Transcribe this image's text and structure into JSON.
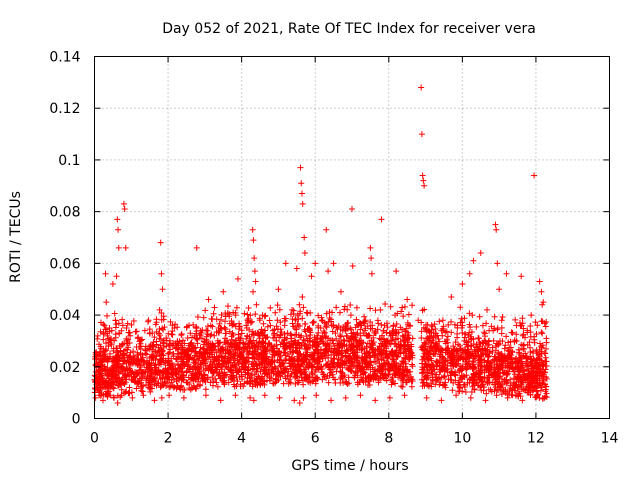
{
  "chart_data": {
    "type": "scatter",
    "title": "Day 052 of 2021, Rate Of TEC Index for receiver vera",
    "xlabel": "GPS time / hours",
    "ylabel": "ROTI / TECUs",
    "xlim": [
      0,
      14
    ],
    "ylim": [
      0,
      0.14
    ],
    "x_ticks": [
      0,
      2,
      4,
      6,
      8,
      10,
      12,
      14
    ],
    "x_tick_labels": [
      "0",
      "2",
      "4",
      "6",
      "8",
      "10",
      "12",
      "14"
    ],
    "y_ticks": [
      0,
      0.02,
      0.04,
      0.06,
      0.08,
      0.1,
      0.12,
      0.14
    ],
    "y_tick_labels": [
      "0",
      "0.02",
      "0.04",
      "0.06",
      "0.08",
      "0.1",
      "0.12",
      "0.14"
    ],
    "grid": true,
    "marker": "+",
    "color": "#ff0000",
    "series": [
      {
        "name": "ROTI",
        "x": [
          0.0,
          0.05,
          0.1,
          0.15,
          0.2,
          0.25,
          0.3,
          0.35,
          0.4,
          0.45,
          0.5,
          0.55,
          0.6,
          0.65,
          0.7,
          0.75,
          0.8,
          0.85,
          0.9,
          0.95,
          1.0,
          1.1,
          1.2,
          1.3,
          1.4,
          1.5,
          1.6,
          1.7,
          1.75,
          1.8,
          1.85,
          1.9,
          2.0,
          2.1,
          2.2,
          2.3,
          2.4,
          2.5,
          2.6,
          2.7,
          2.75,
          2.8,
          2.9,
          3.0,
          3.1,
          3.2,
          3.3,
          3.4,
          3.5,
          3.6,
          3.7,
          3.8,
          3.9,
          4.0,
          4.1,
          4.2,
          4.3,
          4.35,
          4.4,
          4.5,
          4.6,
          4.7,
          4.8,
          4.9,
          5.0,
          5.1,
          5.2,
          5.3,
          5.4,
          5.5,
          5.55,
          5.6,
          5.65,
          5.7,
          5.75,
          5.8,
          5.9,
          6.0,
          6.1,
          6.2,
          6.3,
          6.4,
          6.5,
          6.6,
          6.7,
          6.8,
          6.9,
          7.0,
          7.1,
          7.2,
          7.3,
          7.4,
          7.5,
          7.6,
          7.7,
          7.8,
          7.9,
          8.0,
          8.1,
          8.2,
          8.3,
          8.4,
          8.5,
          8.6,
          8.9,
          8.95,
          9.0,
          9.1,
          9.2,
          9.3,
          9.4,
          9.5,
          9.6,
          9.7,
          9.8,
          9.9,
          10.0,
          10.1,
          10.2,
          10.3,
          10.4,
          10.5,
          10.6,
          10.7,
          10.8,
          10.9,
          10.95,
          11.0,
          11.1,
          11.2,
          11.3,
          11.4,
          11.5,
          11.6,
          11.7,
          11.8,
          11.9,
          11.95,
          12.0,
          12.1,
          12.2,
          0.02,
          0.08,
          0.12,
          0.18,
          0.22,
          0.28,
          0.33,
          0.38,
          0.42,
          0.48,
          0.52,
          0.58,
          0.62,
          0.68,
          0.72,
          0.78,
          0.82,
          0.88,
          1.05,
          1.15,
          1.25,
          1.35,
          1.45,
          1.55,
          1.65,
          1.78,
          1.95,
          2.05,
          2.15,
          2.25,
          2.35,
          2.45,
          2.55,
          2.65,
          2.85,
          2.95,
          3.05,
          3.15,
          3.25,
          3.35,
          3.45,
          3.55,
          3.65,
          3.75,
          3.85,
          3.95,
          4.05,
          4.15,
          4.25,
          4.45,
          4.55,
          4.65,
          4.75,
          4.85,
          4.95,
          5.05,
          5.15,
          5.25,
          5.35,
          5.45,
          5.62,
          5.72,
          5.85,
          5.95,
          6.05,
          6.15,
          6.25,
          6.35,
          6.45,
          6.55,
          6.65,
          6.75,
          6.85,
          6.95,
          7.05,
          7.15,
          7.25,
          7.35,
          7.45,
          7.55,
          7.65,
          7.75,
          7.85,
          7.95,
          8.05,
          8.15,
          8.25,
          8.35,
          8.45,
          8.55,
          8.65,
          8.92,
          9.05,
          9.15,
          9.25,
          9.35,
          9.45,
          9.55,
          9.65,
          9.75,
          9.85,
          9.95,
          10.05,
          10.15,
          10.25,
          10.35,
          10.45,
          10.55,
          10.65,
          10.75,
          10.85,
          10.92,
          11.05,
          11.15,
          11.25,
          11.35,
          11.45,
          11.55,
          11.65,
          11.75,
          11.85,
          11.92,
          12.05,
          12.15,
          12.25,
          0.03,
          0.13,
          0.23,
          0.43,
          0.53,
          0.63,
          0.73,
          1.03,
          1.33,
          1.63,
          1.83,
          2.03,
          2.43,
          3.03,
          3.43,
          3.83,
          4.23,
          4.33,
          4.63,
          5.03,
          5.43,
          5.58,
          5.68,
          6.03,
          6.43,
          6.83,
          7.23,
          7.63,
          8.03,
          8.43,
          9.03,
          9.43,
          9.83,
          10.23,
          10.63,
          10.93,
          11.23,
          11.63,
          12.03,
          12.23,
          0.27,
          0.37,
          0.47,
          0.57,
          0.67,
          0.77,
          0.87,
          0.97,
          1.37,
          1.47,
          1.57,
          1.77,
          2.17,
          2.57,
          2.97,
          3.37,
          3.77,
          4.17,
          4.57,
          4.97,
          5.17,
          5.37,
          5.57,
          5.77,
          6.17,
          6.57,
          6.97,
          7.37,
          7.77,
          8.17,
          8.57,
          9.07,
          9.47,
          9.87,
          10.27,
          10.67,
          11.07,
          11.47,
          11.87,
          12.17,
          0.8,
          0.82,
          0.3,
          0.32,
          0.5,
          0.6,
          0.62,
          0.64,
          0.66,
          1.8,
          1.82,
          1.85,
          2.78,
          3.1,
          3.5,
          3.9,
          4.3,
          4.32,
          4.34,
          4.36,
          4.38,
          5.0,
          5.2,
          5.5,
          5.6,
          5.62,
          5.64,
          5.66,
          5.7,
          5.72,
          5.9,
          6.0,
          6.3,
          6.5,
          6.7,
          7.0,
          7.5,
          7.52,
          7.54,
          7.8,
          8.2,
          8.5,
          8.88,
          8.9,
          8.92,
          8.94,
          8.96,
          9.7,
          10.0,
          10.2,
          10.3,
          10.5,
          10.9,
          10.92,
          10.95,
          11.0,
          11.2,
          11.6,
          11.95,
          12.1,
          12.15,
          12.2,
          5.65,
          5.68,
          0.85,
          4.31,
          6.35,
          7.02,
          7.55,
          8.8
        ],
        "y": [
          0.015,
          0.013,
          0.018,
          0.012,
          0.016,
          0.014,
          0.019,
          0.013,
          0.017,
          0.015,
          0.012,
          0.016,
          0.014,
          0.018,
          0.013,
          0.02,
          0.016,
          0.014,
          0.017,
          0.012,
          0.015,
          0.018,
          0.014,
          0.016,
          0.013,
          0.019,
          0.015,
          0.017,
          0.021,
          0.018,
          0.016,
          0.014,
          0.017,
          0.015,
          0.019,
          0.016,
          0.018,
          0.014,
          0.02,
          0.016,
          0.015,
          0.018,
          0.021,
          0.017,
          0.019,
          0.016,
          0.02,
          0.018,
          0.022,
          0.017,
          0.019,
          0.021,
          0.018,
          0.02,
          0.017,
          0.022,
          0.019,
          0.023,
          0.018,
          0.021,
          0.019,
          0.017,
          0.022,
          0.02,
          0.018,
          0.021,
          0.019,
          0.023,
          0.02,
          0.018,
          0.022,
          0.025,
          0.021,
          0.019,
          0.023,
          0.02,
          0.018,
          0.022,
          0.02,
          0.024,
          0.021,
          0.019,
          0.023,
          0.02,
          0.018,
          0.022,
          0.019,
          0.021,
          0.018,
          0.02,
          0.017,
          0.021,
          0.019,
          0.022,
          0.018,
          0.02,
          0.017,
          0.019,
          0.016,
          0.018,
          0.02,
          0.017,
          0.019,
          0.016,
          0.015,
          0.018,
          0.016,
          0.019,
          0.015,
          0.017,
          0.014,
          0.016,
          0.018,
          0.015,
          0.017,
          0.014,
          0.016,
          0.019,
          0.015,
          0.017,
          0.014,
          0.018,
          0.016,
          0.014,
          0.017,
          0.015,
          0.018,
          0.016,
          0.013,
          0.017,
          0.015,
          0.014,
          0.016,
          0.013,
          0.015,
          0.017,
          0.014,
          0.012,
          0.015,
          0.013,
          0.016,
          0.014,
          0.012,
          0.024,
          0.027,
          0.022,
          0.026,
          0.023,
          0.028,
          0.025,
          0.022,
          0.027,
          0.024,
          0.026,
          0.023,
          0.028,
          0.025,
          0.022,
          0.029,
          0.026,
          0.023,
          0.025,
          0.022,
          0.027,
          0.024,
          0.026,
          0.023,
          0.028,
          0.03,
          0.025,
          0.027,
          0.024,
          0.029,
          0.026,
          0.028,
          0.025,
          0.027,
          0.03,
          0.032,
          0.028,
          0.03,
          0.027,
          0.031,
          0.029,
          0.033,
          0.028,
          0.031,
          0.029,
          0.032,
          0.03,
          0.028,
          0.033,
          0.031,
          0.029,
          0.034,
          0.03,
          0.032,
          0.029,
          0.033,
          0.031,
          0.035,
          0.032,
          0.03,
          0.034,
          0.037,
          0.032,
          0.035,
          0.033,
          0.031,
          0.036,
          0.033,
          0.03,
          0.034,
          0.032,
          0.035,
          0.031,
          0.033,
          0.03,
          0.034,
          0.032,
          0.029,
          0.033,
          0.031,
          0.034,
          0.03,
          0.032,
          0.029,
          0.031,
          0.028,
          0.03,
          0.027,
          0.031,
          0.028,
          0.026,
          0.028,
          0.025,
          0.027,
          0.024,
          0.029,
          0.026,
          0.028,
          0.025,
          0.027,
          0.03,
          0.026,
          0.028,
          0.025,
          0.031,
          0.027,
          0.029,
          0.026,
          0.03,
          0.028,
          0.025,
          0.027,
          0.024,
          0.026,
          0.023,
          0.025,
          0.027,
          0.024,
          0.022,
          0.026,
          0.023,
          0.025,
          0.022,
          0.008,
          0.009,
          0.007,
          0.009,
          0.008,
          0.006,
          0.009,
          0.008,
          0.009,
          0.007,
          0.008,
          0.009,
          0.008,
          0.009,
          0.007,
          0.009,
          0.008,
          0.007,
          0.009,
          0.008,
          0.007,
          0.006,
          0.008,
          0.009,
          0.007,
          0.008,
          0.009,
          0.007,
          0.008,
          0.009,
          0.008,
          0.007,
          0.009,
          0.008,
          0.007,
          0.009,
          0.008,
          0.007,
          0.009,
          0.008,
          0.036,
          0.031,
          0.034,
          0.038,
          0.033,
          0.036,
          0.035,
          0.032,
          0.034,
          0.038,
          0.033,
          0.042,
          0.035,
          0.036,
          0.039,
          0.035,
          0.041,
          0.037,
          0.04,
          0.038,
          0.036,
          0.042,
          0.044,
          0.041,
          0.039,
          0.043,
          0.04,
          0.038,
          0.042,
          0.04,
          0.036,
          0.034,
          0.038,
          0.036,
          0.04,
          0.042,
          0.038,
          0.036,
          0.04,
          0.044,
          0.083,
          0.081,
          0.056,
          0.045,
          0.052,
          0.055,
          0.077,
          0.073,
          0.066,
          0.068,
          0.056,
          0.05,
          0.066,
          0.046,
          0.049,
          0.054,
          0.073,
          0.069,
          0.062,
          0.057,
          0.053,
          0.05,
          0.06,
          0.058,
          0.097,
          0.091,
          0.087,
          0.083,
          0.07,
          0.064,
          0.055,
          0.06,
          0.073,
          0.06,
          0.049,
          0.081,
          0.066,
          0.062,
          0.056,
          0.077,
          0.057,
          0.046,
          0.128,
          0.11,
          0.094,
          0.092,
          0.09,
          0.047,
          0.052,
          0.056,
          0.061,
          0.064,
          0.075,
          0.073,
          0.06,
          0.05,
          0.056,
          0.055,
          0.094,
          0.053,
          0.049,
          0.045,
          0.047,
          0.043,
          0.066,
          0.049,
          0.057,
          0.059,
          0.036,
          0.038
        ]
      }
    ]
  }
}
